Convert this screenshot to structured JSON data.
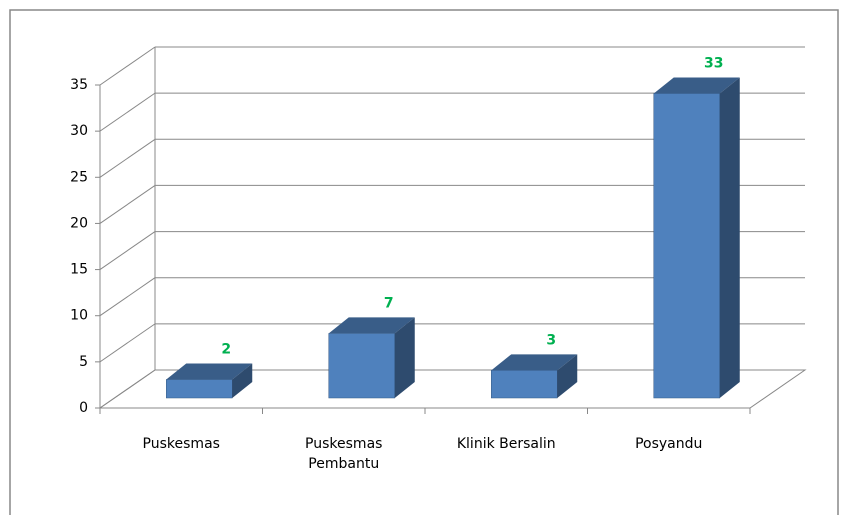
{
  "chart_data": {
    "type": "bar3d",
    "categories": [
      "Puskesmas",
      "Puskesmas Pembantu",
      "Klinik Bersalin",
      "Posyandu"
    ],
    "values": [
      2,
      7,
      3,
      33
    ],
    "color": "#4f81bd",
    "label_color": "#00b050",
    "ylim": [
      0,
      35
    ],
    "yticks": [
      0,
      5,
      10,
      15,
      20,
      25,
      30,
      35
    ],
    "grid": true
  }
}
